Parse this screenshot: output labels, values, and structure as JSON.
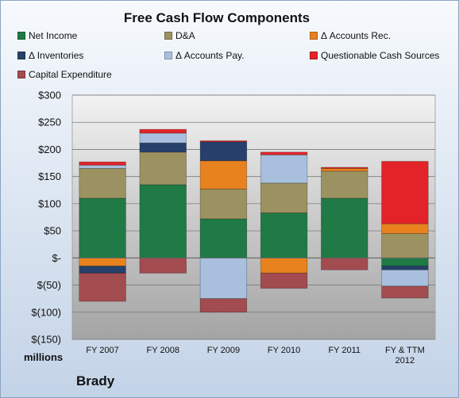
{
  "chart_data": {
    "type": "bar",
    "stacked": true,
    "title": "Free Cash Flow Components",
    "unit_label": "millions",
    "footer_label": "Brady",
    "categories": [
      [
        "FY 2007"
      ],
      [
        "FY 2008"
      ],
      [
        "FY 2009"
      ],
      [
        "FY 2010"
      ],
      [
        "FY 2011"
      ],
      [
        "FY & TTM",
        "2012"
      ]
    ],
    "ylim": [
      -150,
      300
    ],
    "yticks": [
      300,
      250,
      200,
      150,
      100,
      50,
      0,
      -50,
      -100,
      -150
    ],
    "ytick_labels": [
      "$300",
      "$250",
      "$200",
      "$150",
      "$100",
      "$50",
      "$-",
      "$(50)",
      "$(100)",
      "$(150)"
    ],
    "grid": true,
    "legend_position": "top",
    "series": [
      {
        "name": "Net Income",
        "color": "#1f7a45",
        "values": [
          110,
          135,
          72,
          83,
          110,
          -15
        ]
      },
      {
        "name": "D&A",
        "color": "#9c9160",
        "values": [
          55,
          60,
          55,
          55,
          50,
          45
        ]
      },
      {
        "name": "Δ Accounts Rec.",
        "color": "#e8821f",
        "values": [
          -15,
          0,
          52,
          -28,
          5,
          18
        ]
      },
      {
        "name": "Δ Inventories",
        "color": "#27406a",
        "values": [
          -13,
          17,
          35,
          0,
          0,
          -7
        ]
      },
      {
        "name": "Δ Accounts Pay.",
        "color": "#a8c0de",
        "values": [
          6,
          18,
          -75,
          52,
          0,
          -30
        ]
      },
      {
        "name": "Questionable Cash Sources",
        "color": "#e32328",
        "values": [
          6,
          7,
          2,
          5,
          2,
          115
        ]
      },
      {
        "name": "Capital Expenditure",
        "color": "#a24c50",
        "values": [
          -52,
          -28,
          -25,
          -28,
          -22,
          -22
        ]
      }
    ]
  }
}
